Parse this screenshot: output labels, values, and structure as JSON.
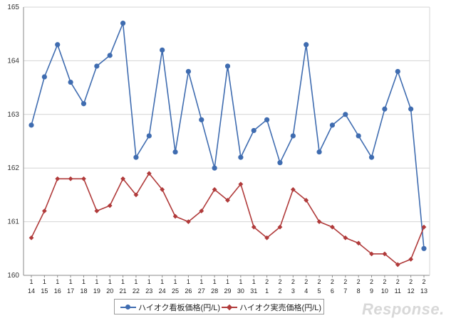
{
  "chart_data": {
    "type": "line",
    "title": "",
    "xlabel": "",
    "ylabel": "",
    "ylim": [
      160,
      165
    ],
    "y_ticks": [
      "160",
      "161",
      "162",
      "163",
      "164",
      "165"
    ],
    "grid": true,
    "legend_position": "bottom",
    "categories": [
      {
        "month": "1",
        "day": "14"
      },
      {
        "month": "1",
        "day": "15"
      },
      {
        "month": "1",
        "day": "16"
      },
      {
        "month": "1",
        "day": "17"
      },
      {
        "month": "1",
        "day": "18"
      },
      {
        "month": "1",
        "day": "19"
      },
      {
        "month": "1",
        "day": "20"
      },
      {
        "month": "1",
        "day": "21"
      },
      {
        "month": "1",
        "day": "22"
      },
      {
        "month": "1",
        "day": "23"
      },
      {
        "month": "1",
        "day": "24"
      },
      {
        "month": "1",
        "day": "25"
      },
      {
        "month": "1",
        "day": "26"
      },
      {
        "month": "1",
        "day": "27"
      },
      {
        "month": "1",
        "day": "28"
      },
      {
        "month": "1",
        "day": "29"
      },
      {
        "month": "1",
        "day": "30"
      },
      {
        "month": "1",
        "day": "31"
      },
      {
        "month": "2",
        "day": "1"
      },
      {
        "month": "2",
        "day": "2"
      },
      {
        "month": "2",
        "day": "3"
      },
      {
        "month": "2",
        "day": "4"
      },
      {
        "month": "2",
        "day": "5"
      },
      {
        "month": "2",
        "day": "6"
      },
      {
        "month": "2",
        "day": "7"
      },
      {
        "month": "2",
        "day": "8"
      },
      {
        "month": "2",
        "day": "9"
      },
      {
        "month": "2",
        "day": "10"
      },
      {
        "month": "2",
        "day": "11"
      },
      {
        "month": "2",
        "day": "12"
      },
      {
        "month": "2",
        "day": "13"
      }
    ],
    "series": [
      {
        "name": "ハイオク看板価格(円/L)",
        "color": "#3f6cb0",
        "marker": "circle",
        "values": [
          162.8,
          163.7,
          164.3,
          163.6,
          163.2,
          163.9,
          164.1,
          164.7,
          162.2,
          162.6,
          164.2,
          162.3,
          163.8,
          162.9,
          162.0,
          163.9,
          162.2,
          162.7,
          162.9,
          162.1,
          162.6,
          164.3,
          162.3,
          162.8,
          163.0,
          162.6,
          162.2,
          163.1,
          163.8,
          163.1,
          160.5
        ]
      },
      {
        "name": "ハイオク実売価格(円/L)",
        "color": "#b03a3a",
        "marker": "diamond",
        "values": [
          160.7,
          161.2,
          161.8,
          161.8,
          161.8,
          161.2,
          161.3,
          161.8,
          161.5,
          161.9,
          161.6,
          161.1,
          161.0,
          161.2,
          161.6,
          161.4,
          161.7,
          160.9,
          160.7,
          160.9,
          161.6,
          161.4,
          161.0,
          160.9,
          160.7,
          160.6,
          160.4,
          160.4,
          160.2,
          160.3,
          160.9
        ]
      }
    ]
  },
  "watermark": "Response."
}
